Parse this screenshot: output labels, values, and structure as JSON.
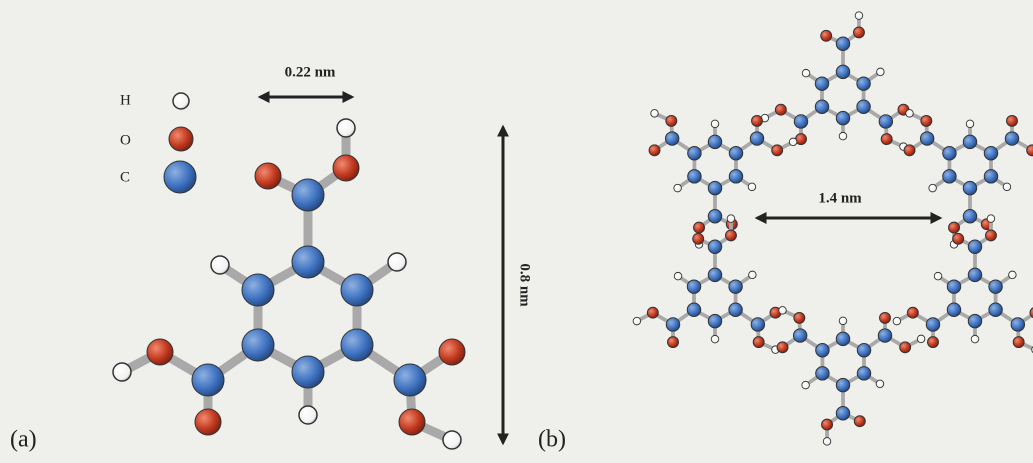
{
  "panel_a": {
    "label": "(a)",
    "legend": [
      {
        "symbol": "H"
      },
      {
        "symbol": "O"
      },
      {
        "symbol": "C"
      }
    ],
    "width_label": "0.22 nm",
    "height_label": "0.8 nm"
  },
  "panel_b": {
    "label": "(b)",
    "pore_label": "1.4 nm"
  }
}
